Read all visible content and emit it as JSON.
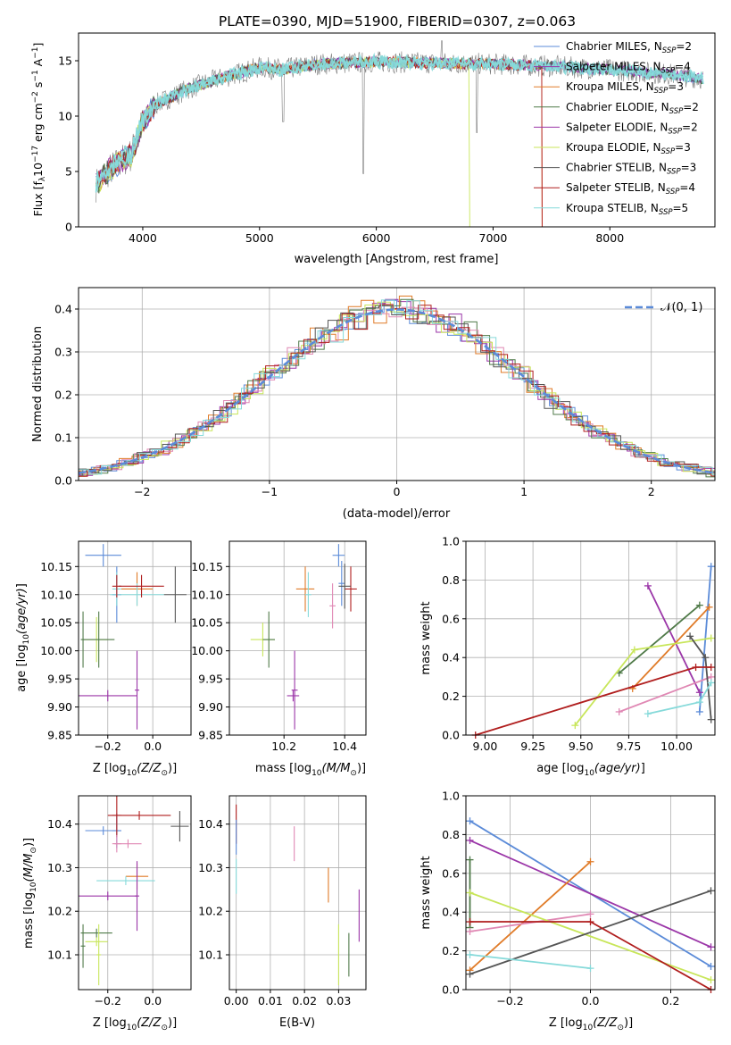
{
  "figure": {
    "title": "PLATE=0390, MJD=51900, FIBERID=0307, z=0.063"
  },
  "colors": {
    "chabrier_miles": "#5b8bd8",
    "salpeter_miles": "#9b36a8",
    "kroupa_miles": "#e07b28",
    "chabrier_elodie": "#4f7a48",
    "salpeter_elodie": "#9b36a8",
    "kroupa_elodie": "#c8e65a",
    "chabrier_stelib": "#555555",
    "salpeter_stelib": "#b01e1e",
    "kroupa_stelib": "#86dada",
    "pink": "#e088b4",
    "grid": "#b0b0b0"
  },
  "chart_data": [
    {
      "type": "line",
      "id": "spectrum",
      "title": "PLATE=0390, MJD=51900, FIBERID=0307, z=0.063",
      "xlabel": "wavelength [Angstrom, rest frame]",
      "ylabel": "Flux [f_λ 10^-17 erg cm^-2 s^-1 A^-1]",
      "xlim": [
        3450,
        8900
      ],
      "ylim": [
        0,
        17.5
      ],
      "xticks": [
        4000,
        5000,
        6000,
        7000,
        8000
      ],
      "yticks": [
        0,
        5,
        10,
        15
      ],
      "grid": false,
      "legend_position": "top-right",
      "continuum": {
        "x": [
          3600,
          3700,
          3800,
          3900,
          4000,
          4100,
          4200,
          4400,
          4600,
          4800,
          5000,
          5200,
          5500,
          6000,
          6500,
          7000,
          7500,
          8000,
          8500,
          8800
        ],
        "y": [
          3.8,
          5.0,
          5.8,
          6.5,
          9.5,
          11.0,
          11.5,
          12.5,
          13.2,
          13.8,
          14.4,
          14.2,
          14.7,
          14.9,
          14.8,
          14.7,
          14.5,
          14.2,
          13.8,
          13.4
        ]
      },
      "series": [
        {
          "name": "Chabrier MILES, N_SSP=2",
          "label_main": "Chabrier MILES, N",
          "label_sub": "SSP",
          "label_tail": "=2",
          "color": "#5b8bd8"
        },
        {
          "name": "Salpeter MILES, N_SSP=4",
          "label_main": "Salpeter MILES, N",
          "label_sub": "SSP",
          "label_tail": "=4",
          "color": "#9b36a8"
        },
        {
          "name": "Kroupa MILES, N_SSP=3",
          "label_main": "Kroupa MILES, N",
          "label_sub": "SSP",
          "label_tail": "=3",
          "color": "#e07b28"
        },
        {
          "name": "Chabrier ELODIE, N_SSP=2",
          "label_main": "Chabrier ELODIE, N",
          "label_sub": "SSP",
          "label_tail": "=2",
          "color": "#4f7a48"
        },
        {
          "name": "Salpeter ELODIE, N_SSP=2",
          "label_main": "Salpeter ELODIE, N",
          "label_sub": "SSP",
          "label_tail": "=2",
          "color": "#9b36a8"
        },
        {
          "name": "Kroupa ELODIE, N_SSP=3",
          "label_main": "Kroupa ELODIE, N",
          "label_sub": "SSP",
          "label_tail": "=3",
          "color": "#c8e65a"
        },
        {
          "name": "Chabrier STELIB, N_SSP=3",
          "label_main": "Chabrier STELIB, N",
          "label_sub": "SSP",
          "label_tail": "=3",
          "color": "#555555"
        },
        {
          "name": "Salpeter STELIB, N_SSP=4",
          "label_main": "Salpeter STELIB, N",
          "label_sub": "SSP",
          "label_tail": "=4",
          "color": "#b01e1e"
        },
        {
          "name": "Kroupa STELIB, N_SSP=5",
          "label_main": "Kroupa STELIB, N",
          "label_sub": "SSP",
          "label_tail": "=5",
          "color": "#86dada"
        }
      ]
    },
    {
      "type": "histogram",
      "id": "residuals",
      "xlabel": "(data-model)/error",
      "ylabel": "Normed distribution",
      "xlim": [
        -2.5,
        2.5
      ],
      "ylim": [
        0,
        0.45
      ],
      "xticks": [
        -2,
        -1,
        0,
        1,
        2
      ],
      "yticks": [
        0.0,
        0.1,
        0.2,
        0.3,
        0.4
      ],
      "grid": true,
      "legend_position": "top-right",
      "bin_width": 0.1,
      "reference_curve": {
        "name": "N(0,1)",
        "label": "𝒩(0, 1)",
        "color": "#5b8bd8"
      },
      "series_colors": [
        "#5b8bd8",
        "#9b36a8",
        "#e07b28",
        "#4f7a48",
        "#e088b4",
        "#c8e65a",
        "#555555",
        "#b01e1e",
        "#86dada"
      ]
    },
    {
      "type": "errorbar",
      "id": "age_vs_Z",
      "xlabel": "Z [log10(Z/Z⊙)]",
      "ylabel": "age [log10(age/yr)]",
      "xlim": [
        -0.33,
        0.17
      ],
      "ylim": [
        9.85,
        10.195
      ],
      "xticks": [
        -0.2,
        0.0
      ],
      "yticks": [
        9.85,
        9.9,
        9.95,
        10.0,
        10.05,
        10.1,
        10.15
      ],
      "grid": true,
      "points": [
        {
          "x": -0.22,
          "xerr": 0.08,
          "y": 10.17,
          "yerr": 0.02,
          "color": "#5b8bd8"
        },
        {
          "x": -0.16,
          "xerr": 0.02,
          "y": 10.1,
          "yerr": 0.05,
          "color": "#5b8bd8"
        },
        {
          "x": -0.07,
          "xerr": 0.07,
          "y": 10.11,
          "yerr": 0.03,
          "color": "#e07b28"
        },
        {
          "x": -0.07,
          "xerr": 0.12,
          "y": 10.1,
          "yerr": 0.02,
          "color": "#86dada"
        },
        {
          "x": -0.16,
          "xerr": 0.02,
          "y": 10.11,
          "yerr": 0.03,
          "color": "#86dada"
        },
        {
          "x": -0.05,
          "xerr": 0.1,
          "y": 10.115,
          "yerr": 0.02,
          "color": "#b01e1e"
        },
        {
          "x": -0.16,
          "xerr": 0.02,
          "y": 10.115,
          "yerr": 0.02,
          "color": "#b01e1e"
        },
        {
          "x": 0.1,
          "xerr": 0.05,
          "y": 10.1,
          "yerr": 0.05,
          "color": "#555555"
        },
        {
          "x": -0.25,
          "xerr": 0.05,
          "y": 10.02,
          "yerr": 0.04,
          "color": "#c8e65a"
        },
        {
          "x": -0.24,
          "xerr": 0.07,
          "y": 10.02,
          "yerr": 0.05,
          "color": "#4f7a48"
        },
        {
          "x": -0.31,
          "xerr": 0.01,
          "y": 10.02,
          "yerr": 0.05,
          "color": "#4f7a48"
        },
        {
          "x": -0.07,
          "xerr": 0.01,
          "y": 9.93,
          "yerr": 0.07,
          "color": "#9b36a8"
        },
        {
          "x": -0.2,
          "xerr": 0.13,
          "y": 9.92,
          "yerr": 0.01,
          "color": "#9b36a8"
        }
      ]
    },
    {
      "type": "errorbar",
      "id": "age_vs_mass",
      "xlabel": "mass [log10(M/M⊙)]",
      "ylabel": "",
      "xlim": [
        10.02,
        10.47
      ],
      "ylim": [
        9.85,
        10.195
      ],
      "xticks": [
        10.2,
        10.4
      ],
      "yticks": [
        9.85,
        9.9,
        9.95,
        10.0,
        10.05,
        10.1,
        10.15
      ],
      "grid": true,
      "points": [
        {
          "x": 10.38,
          "xerr": 0.02,
          "y": 10.17,
          "yerr": 0.02,
          "color": "#5b8bd8"
        },
        {
          "x": 10.39,
          "xerr": 0.01,
          "y": 10.12,
          "yerr": 0.04,
          "color": "#5b8bd8"
        },
        {
          "x": 10.27,
          "xerr": 0.03,
          "y": 10.11,
          "yerr": 0.04,
          "color": "#e07b28"
        },
        {
          "x": 10.28,
          "xerr": 0.01,
          "y": 10.1,
          "yerr": 0.04,
          "color": "#86dada"
        },
        {
          "x": 10.36,
          "xerr": 0.01,
          "y": 10.08,
          "yerr": 0.04,
          "color": "#e088b4"
        },
        {
          "x": 10.42,
          "xerr": 0.02,
          "y": 10.11,
          "yerr": 0.04,
          "color": "#b01e1e"
        },
        {
          "x": 10.4,
          "xerr": 0.02,
          "y": 10.115,
          "yerr": 0.04,
          "color": "#555555"
        },
        {
          "x": 10.13,
          "xerr": 0.04,
          "y": 10.02,
          "yerr": 0.03,
          "color": "#c8e65a"
        },
        {
          "x": 10.15,
          "xerr": 0.02,
          "y": 10.02,
          "yerr": 0.05,
          "color": "#4f7a48"
        },
        {
          "x": 10.235,
          "xerr": 0.01,
          "y": 9.93,
          "yerr": 0.07,
          "color": "#9b36a8"
        },
        {
          "x": 10.23,
          "xerr": 0.02,
          "y": 9.92,
          "yerr": 0.01,
          "color": "#9b36a8"
        }
      ]
    },
    {
      "type": "line",
      "id": "weight_vs_age",
      "xlabel": "age [log10(age/yr)]",
      "ylabel": "mass weight",
      "xlim": [
        8.9,
        10.2
      ],
      "ylim": [
        0.0,
        1.0
      ],
      "xticks": [
        9.0,
        9.25,
        9.5,
        9.75,
        10.0
      ],
      "yticks": [
        0.0,
        0.2,
        0.4,
        0.6,
        0.8,
        1.0
      ],
      "grid": true,
      "series": [
        {
          "color": "#5b8bd8",
          "x": [
            10.12,
            10.18
          ],
          "y": [
            0.12,
            0.87
          ]
        },
        {
          "color": "#9b36a8",
          "x": [
            9.85,
            10.12
          ],
          "y": [
            0.77,
            0.22
          ]
        },
        {
          "color": "#e07b28",
          "x": [
            9.77,
            10.17
          ],
          "y": [
            0.24,
            0.66
          ]
        },
        {
          "color": "#4f7a48",
          "x": [
            9.7,
            10.12
          ],
          "y": [
            0.32,
            0.67
          ]
        },
        {
          "color": "#e088b4",
          "x": [
            9.7,
            10.18
          ],
          "y": [
            0.12,
            0.3
          ]
        },
        {
          "color": "#c8e65a",
          "x": [
            9.47,
            9.78,
            10.18
          ],
          "y": [
            0.05,
            0.44,
            0.5
          ]
        },
        {
          "color": "#555555",
          "x": [
            10.07,
            10.15,
            10.18
          ],
          "y": [
            0.51,
            0.4,
            0.08
          ]
        },
        {
          "color": "#b01e1e",
          "x": [
            8.95,
            10.1,
            10.18
          ],
          "y": [
            0.0,
            0.35,
            0.35
          ]
        },
        {
          "color": "#86dada",
          "x": [
            9.85,
            10.12,
            10.18
          ],
          "y": [
            0.11,
            0.17,
            0.27
          ]
        }
      ]
    },
    {
      "type": "errorbar",
      "id": "mass_vs_Z",
      "xlabel": "Z [log10(Z/Z⊙)]",
      "ylabel": "mass [log10(M/M⊙)]",
      "xlim": [
        -0.33,
        0.17
      ],
      "ylim": [
        10.02,
        10.465
      ],
      "xticks": [
        -0.2,
        0.0
      ],
      "yticks": [
        10.1,
        10.2,
        10.3,
        10.4
      ],
      "grid": true,
      "points": [
        {
          "x": -0.16,
          "xerr": 0.02,
          "y": 10.385,
          "yerr": 0.04,
          "color": "#5b8bd8"
        },
        {
          "x": -0.22,
          "xerr": 0.08,
          "y": 10.385,
          "yerr": 0.01,
          "color": "#5b8bd8"
        },
        {
          "x": -0.16,
          "xerr": 0.02,
          "y": 10.42,
          "yerr": 0.05,
          "color": "#b01e1e"
        },
        {
          "x": -0.06,
          "xerr": 0.14,
          "y": 10.42,
          "yerr": 0.01,
          "color": "#b01e1e"
        },
        {
          "x": 0.12,
          "xerr": 0.04,
          "y": 10.395,
          "yerr": 0.035,
          "color": "#555555"
        },
        {
          "x": -0.11,
          "xerr": 0.06,
          "y": 10.355,
          "yerr": 0.01,
          "color": "#e088b4"
        },
        {
          "x": -0.16,
          "xerr": 0.02,
          "y": 10.355,
          "yerr": 0.02,
          "color": "#e088b4"
        },
        {
          "x": -0.07,
          "xerr": 0.05,
          "y": 10.28,
          "yerr": 0.03,
          "color": "#e07b28"
        },
        {
          "x": -0.12,
          "xerr": 0.13,
          "y": 10.27,
          "yerr": 0.01,
          "color": "#86dada"
        },
        {
          "x": -0.07,
          "xerr": 0.01,
          "y": 10.235,
          "yerr": 0.08,
          "color": "#9b36a8"
        },
        {
          "x": -0.2,
          "xerr": 0.13,
          "y": 10.235,
          "yerr": 0.01,
          "color": "#9b36a8"
        },
        {
          "x": -0.25,
          "xerr": 0.07,
          "y": 10.15,
          "yerr": 0.01,
          "color": "#4f7a48"
        },
        {
          "x": -0.31,
          "xerr": 0.01,
          "y": 10.12,
          "yerr": 0.05,
          "color": "#4f7a48"
        },
        {
          "x": -0.25,
          "xerr": 0.05,
          "y": 10.13,
          "yerr": 0.01,
          "color": "#c8e65a"
        },
        {
          "x": -0.24,
          "xerr": 0.01,
          "y": 10.1,
          "yerr": 0.07,
          "color": "#c8e65a"
        }
      ]
    },
    {
      "type": "errorbar",
      "id": "mass_vs_ebv",
      "xlabel": "E(B-V)",
      "ylabel": "",
      "xlim": [
        -0.002,
        0.038
      ],
      "ylim": [
        10.02,
        10.465
      ],
      "xticks": [
        0.0,
        0.01,
        0.02,
        0.03
      ],
      "yticks": [
        10.1,
        10.2,
        10.3,
        10.4
      ],
      "grid": true,
      "points": [
        {
          "x": 0.0,
          "xerr": 0,
          "y": 10.4,
          "yerr": 0.045,
          "color": "#b01e1e"
        },
        {
          "x": 0.0,
          "xerr": 0,
          "y": 10.37,
          "yerr": 0.04,
          "color": "#5b8bd8"
        },
        {
          "x": 0.0,
          "xerr": 0,
          "y": 10.28,
          "yerr": 0.04,
          "color": "#86dada"
        },
        {
          "x": 0.017,
          "xerr": 0,
          "y": 10.355,
          "yerr": 0.04,
          "color": "#e088b4"
        },
        {
          "x": 0.027,
          "xerr": 0,
          "y": 10.26,
          "yerr": 0.04,
          "color": "#e07b28"
        },
        {
          "x": 0.036,
          "xerr": 0,
          "y": 10.19,
          "yerr": 0.06,
          "color": "#9b36a8"
        },
        {
          "x": 0.033,
          "xerr": 0,
          "y": 10.1,
          "yerr": 0.05,
          "color": "#4f7a48"
        },
        {
          "x": 0.03,
          "xerr": 0,
          "y": 10.1,
          "yerr": 0.07,
          "color": "#c8e65a"
        }
      ]
    },
    {
      "type": "line",
      "id": "weight_vs_Z",
      "xlabel": "Z [log10(Z/Z⊙)]",
      "ylabel": "mass weight",
      "xlim": [
        -0.31,
        0.31
      ],
      "ylim": [
        0.0,
        1.0
      ],
      "xticks": [
        -0.2,
        0.0,
        0.2
      ],
      "yticks": [
        0.0,
        0.2,
        0.4,
        0.6,
        0.8,
        1.0
      ],
      "grid": true,
      "series": [
        {
          "color": "#5b8bd8",
          "x": [
            -0.3,
            0.3
          ],
          "y": [
            0.87,
            0.12
          ]
        },
        {
          "color": "#9b36a8",
          "x": [
            -0.3,
            0.3
          ],
          "y": [
            0.77,
            0.22
          ]
        },
        {
          "color": "#e07b28",
          "x": [
            -0.3,
            0.0
          ],
          "y": [
            0.1,
            0.66
          ]
        },
        {
          "color": "#4f7a48",
          "x": [
            -0.3,
            -0.3
          ],
          "y": [
            0.32,
            0.67
          ]
        },
        {
          "color": "#e088b4",
          "x": [
            -0.3,
            0.0
          ],
          "y": [
            0.3,
            0.39
          ]
        },
        {
          "color": "#c8e65a",
          "x": [
            -0.3,
            0.3
          ],
          "y": [
            0.5,
            0.05
          ]
        },
        {
          "color": "#555555",
          "x": [
            -0.3,
            0.3
          ],
          "y": [
            0.08,
            0.51
          ]
        },
        {
          "color": "#b01e1e",
          "x": [
            -0.3,
            0.0,
            0.3
          ],
          "y": [
            0.35,
            0.35,
            0.0
          ]
        },
        {
          "color": "#86dada",
          "x": [
            -0.3,
            0.0
          ],
          "y": [
            0.18,
            0.11
          ]
        }
      ]
    }
  ]
}
